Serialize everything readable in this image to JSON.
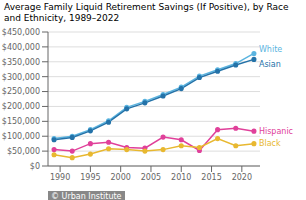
{
  "chart_data": {
    "type": "line",
    "title": "Average Family Liquid Retirement Savings (If Positive), by Race and Ethnicity, 1989–2022",
    "x": [
      1989,
      1992,
      1995,
      1998,
      2001,
      2004,
      2007,
      2010,
      2013,
      2016,
      2019,
      2022
    ],
    "series": [
      {
        "name": "White",
        "color": "#5ab4e0",
        "marker": "o",
        "values": [
          92000,
          100000,
          122000,
          152000,
          197000,
          217000,
          240000,
          265000,
          302000,
          323000,
          344000,
          378000
        ]
      },
      {
        "name": "Asian",
        "color": "#2472a8",
        "marker": "o",
        "values": [
          88000,
          96000,
          118000,
          147000,
          192000,
          212000,
          235000,
          260000,
          297000,
          318000,
          339000,
          358000
        ]
      },
      {
        "name": "Hispanic",
        "color": "#e0409a",
        "marker": "o",
        "values": [
          55000,
          50000,
          75000,
          80000,
          62000,
          60000,
          97000,
          88000,
          52000,
          122000,
          127000,
          117000
        ]
      },
      {
        "name": "Black",
        "color": "#e8b830",
        "marker": "o",
        "values": [
          38000,
          28000,
          40000,
          58000,
          55000,
          50000,
          55000,
          68000,
          62000,
          92000,
          68000,
          75000
        ]
      }
    ],
    "xlim": [
      1988,
      2023
    ],
    "xticks": [
      1990,
      1995,
      2000,
      2005,
      2010,
      2015,
      2020
    ],
    "ylim": [
      0,
      450000
    ],
    "yticks": [
      {
        "value": 0,
        "label": "$0"
      },
      {
        "value": 50000,
        "label": "$50,000"
      },
      {
        "value": 100000,
        "label": "$100,000"
      },
      {
        "value": 150000,
        "label": "$150,000"
      },
      {
        "value": 200000,
        "label": "$200,000"
      },
      {
        "value": 250000,
        "label": "$250,000"
      },
      {
        "value": 300000,
        "label": "$300,000"
      },
      {
        "value": 350000,
        "label": "$350,000"
      },
      {
        "value": 400000,
        "label": "$400,000"
      },
      {
        "value": 450000,
        "label": "$450,000"
      }
    ],
    "grid": true,
    "annotations": [
      "© Urban Institute"
    ]
  }
}
